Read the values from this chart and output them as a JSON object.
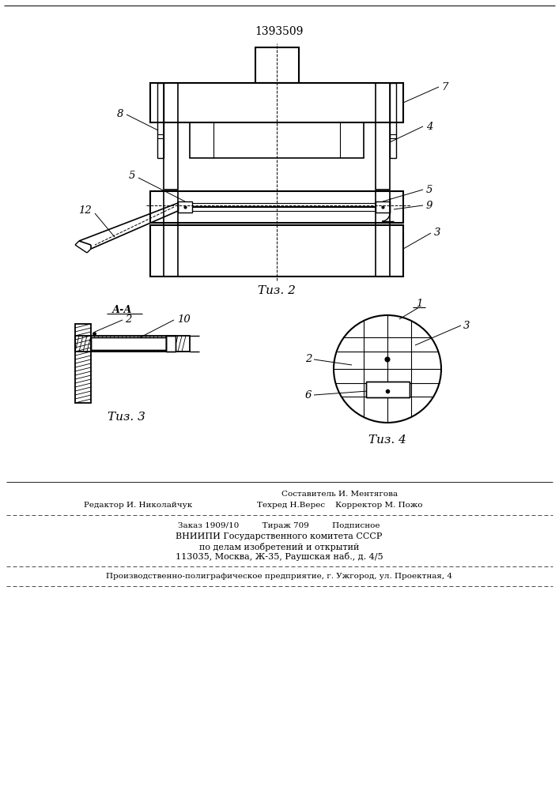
{
  "patent_number": "1393509",
  "fig2_label": "Τиз. 2",
  "fig3_label": "Τиз. 3",
  "fig4_label": "Τиз. 4",
  "aa_label": "А-А",
  "footer_col1_line1": "Составитель И. Ментягова",
  "footer_col1_line2": "Техред Н.Верес    Корректор М. Пожо",
  "footer_col2_line2": "Редактор И. Николайчук",
  "footer_line3": "Заказ 1909/10         Тираж 709         Подписное",
  "footer_line4": "ВНИИПИ Государственного комитета СССР",
  "footer_line5": "по делам изобретений и открытий",
  "footer_line6": "113035, Москва, Ж-35, Раушская наб., д. 4/5",
  "footer_line7": "Производственно-полиграфическое предприятие, г. Ужгород, ул. Проектная, 4",
  "bg_color": "#ffffff",
  "line_color": "#000000"
}
